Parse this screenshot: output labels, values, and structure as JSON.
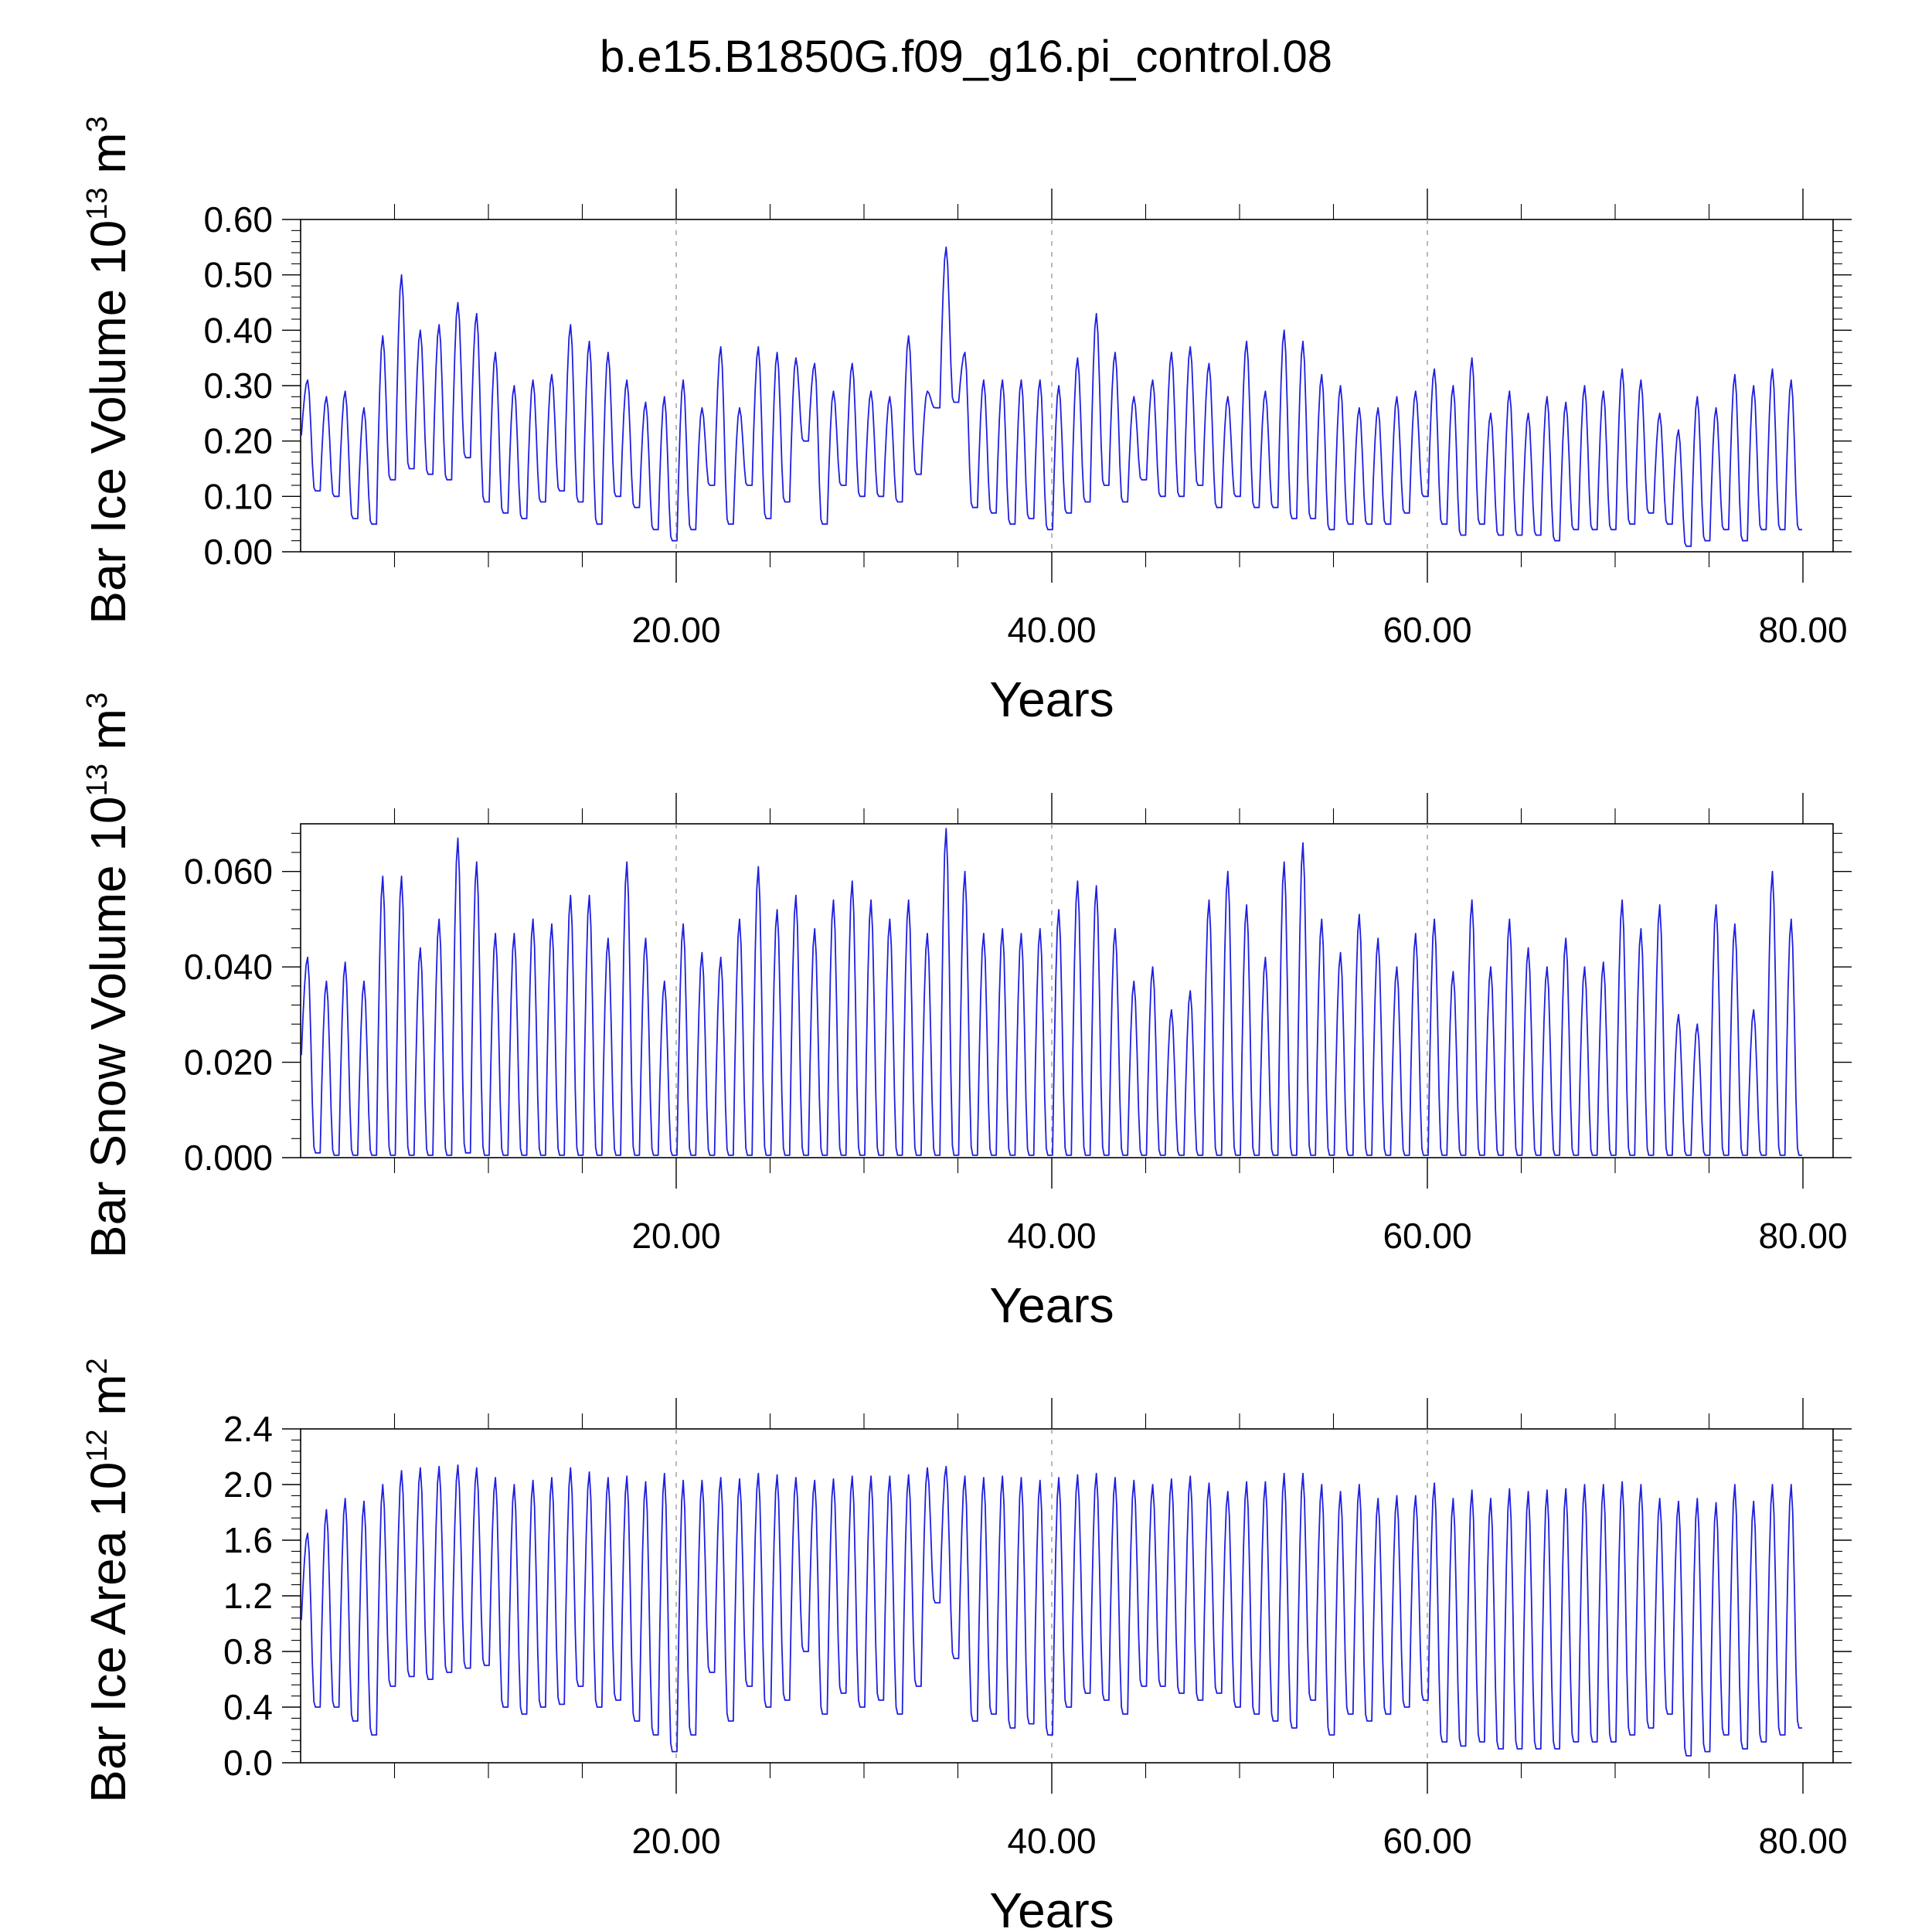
{
  "figure": {
    "title": "b.e15.B1850G.f09_g16.pi_control.08",
    "series_color": "#1f1fe0"
  },
  "chart_data": [
    {
      "type": "line",
      "id": "ice-volume",
      "ylabel": "Bar Ice Volume 10",
      "ylabel_exp": "13",
      "ylabel_unit": " m",
      "ylabel_unit_exp": "3",
      "xlabel": "Years",
      "xlim": [
        0,
        80
      ],
      "ylim": [
        0.0,
        0.6
      ],
      "xticks": [
        20,
        40,
        60,
        80
      ],
      "xtick_labels": [
        "20.00",
        "40.00",
        "60.00",
        "80.00"
      ],
      "yticks": [
        0.0,
        0.1,
        0.2,
        0.3,
        0.4,
        0.5,
        0.6
      ],
      "ytick_labels": [
        "0.00",
        "0.10",
        "0.20",
        "0.30",
        "0.40",
        "0.50",
        "0.60"
      ],
      "grid": "vertical dashed at major x ticks",
      "series": [
        {
          "max": [
            0.31,
            0.28,
            0.29,
            0.26,
            0.39,
            0.5,
            0.4,
            0.41,
            0.45,
            0.43,
            0.36,
            0.3,
            0.31,
            0.32,
            0.41,
            0.38,
            0.36,
            0.31,
            0.27,
            0.28,
            0.31,
            0.26,
            0.37,
            0.26,
            0.37,
            0.36,
            0.35,
            0.34,
            0.29,
            0.34,
            0.29,
            0.28,
            0.39,
            0.29,
            0.55,
            0.36,
            0.31,
            0.31,
            0.31,
            0.31,
            0.3,
            0.35,
            0.43,
            0.36,
            0.28,
            0.31,
            0.36,
            0.37,
            0.34,
            0.28,
            0.38,
            0.29,
            0.4,
            0.38,
            0.32,
            0.3,
            0.26,
            0.26,
            0.28,
            0.29,
            0.33,
            0.3,
            0.35,
            0.25,
            0.29,
            0.25,
            0.28,
            0.27,
            0.3,
            0.29,
            0.33,
            0.31,
            0.25,
            0.22,
            0.28,
            0.26,
            0.32,
            0.3,
            0.33,
            0.31
          ],
          "min": [
            0.11,
            0.1,
            0.06,
            0.05,
            0.13,
            0.15,
            0.14,
            0.13,
            0.17,
            0.09,
            0.07,
            0.06,
            0.09,
            0.11,
            0.09,
            0.05,
            0.1,
            0.08,
            0.04,
            0.02,
            0.04,
            0.12,
            0.05,
            0.12,
            0.06,
            0.09,
            0.2,
            0.05,
            0.12,
            0.1,
            0.1,
            0.09,
            0.14,
            0.26,
            0.27,
            0.08,
            0.07,
            0.05,
            0.06,
            0.04,
            0.07,
            0.09,
            0.12,
            0.09,
            0.13,
            0.1,
            0.1,
            0.12,
            0.08,
            0.1,
            0.08,
            0.08,
            0.06,
            0.06,
            0.04,
            0.05,
            0.05,
            0.05,
            0.07,
            0.1,
            0.05,
            0.03,
            0.05,
            0.03,
            0.03,
            0.03,
            0.02,
            0.04,
            0.04,
            0.04,
            0.05,
            0.07,
            0.05,
            0.01,
            0.02,
            0.04,
            0.02,
            0.04,
            0.04,
            0.04
          ]
        }
      ]
    },
    {
      "type": "line",
      "id": "snow-volume",
      "ylabel": "Bar Snow Volume 10",
      "ylabel_exp": "13",
      "ylabel_unit": " m",
      "ylabel_unit_exp": "3",
      "xlabel": "Years",
      "xlim": [
        0,
        80
      ],
      "ylim": [
        0.0,
        0.07
      ],
      "xticks": [
        20,
        40,
        60,
        80
      ],
      "xtick_labels": [
        "20.00",
        "40.00",
        "60.00",
        "80.00"
      ],
      "yticks": [
        0.0,
        0.02,
        0.04,
        0.06
      ],
      "ytick_labels": [
        "0.000",
        "0.020",
        "0.040",
        "0.060"
      ],
      "grid": "vertical dashed at major x ticks",
      "series": [
        {
          "max": [
            0.042,
            0.037,
            0.041,
            0.037,
            0.059,
            0.059,
            0.044,
            0.05,
            0.067,
            0.062,
            0.047,
            0.047,
            0.05,
            0.049,
            0.055,
            0.055,
            0.046,
            0.062,
            0.046,
            0.037,
            0.049,
            0.043,
            0.042,
            0.05,
            0.061,
            0.052,
            0.055,
            0.048,
            0.054,
            0.058,
            0.054,
            0.05,
            0.054,
            0.047,
            0.069,
            0.06,
            0.047,
            0.048,
            0.047,
            0.048,
            0.052,
            0.058,
            0.057,
            0.048,
            0.037,
            0.04,
            0.031,
            0.035,
            0.054,
            0.06,
            0.053,
            0.042,
            0.062,
            0.066,
            0.05,
            0.043,
            0.051,
            0.046,
            0.04,
            0.047,
            0.05,
            0.039,
            0.054,
            0.04,
            0.05,
            0.044,
            0.04,
            0.046,
            0.04,
            0.041,
            0.054,
            0.048,
            0.053,
            0.03,
            0.028,
            0.053,
            0.049,
            0.031,
            0.06,
            0.05
          ],
          "min": [
            0.001,
            0.0005,
            0.0005,
            0.0005,
            0.0005,
            0.0005,
            0.0005,
            0.0005,
            0.001,
            0.0005,
            0.0005,
            0.0005,
            0.0005,
            0.0005,
            0.0005,
            0.0005,
            0.0005,
            0.0005,
            0.0005,
            0.0005,
            0.0005,
            0.0005,
            0.0005,
            0.0005,
            0.0005,
            0.0005,
            0.0005,
            0.0005,
            0.0005,
            0.0005,
            0.0005,
            0.0005,
            0.0005,
            0.0005,
            0.0005,
            0.0005,
            0.0005,
            0.0005,
            0.0005,
            0.0005,
            0.0005,
            0.0005,
            0.0005,
            0.0005,
            0.0005,
            0.0005,
            0.0005,
            0.0005,
            0.0005,
            0.0005,
            0.0005,
            0.0005,
            0.0005,
            0.0005,
            0.0005,
            0.0005,
            0.0005,
            0.0005,
            0.0005,
            0.0005,
            0.0005,
            0.0005,
            0.0005,
            0.0005,
            0.0005,
            0.0005,
            0.0005,
            0.0005,
            0.0005,
            0.0005,
            0.0005,
            0.0005,
            0.0005,
            0.0005,
            0.0005,
            0.0005,
            0.0005,
            0.0005,
            0.0005,
            0.0005
          ]
        }
      ]
    },
    {
      "type": "line",
      "id": "ice-area",
      "ylabel": "Bar Ice Area 10",
      "ylabel_exp": "12",
      "ylabel_unit": " m",
      "ylabel_unit_exp": "2",
      "xlabel": "Years",
      "xlim": [
        0,
        80
      ],
      "ylim": [
        0.0,
        2.4
      ],
      "xticks": [
        20,
        40,
        60,
        80
      ],
      "xtick_labels": [
        "20.00",
        "40.00",
        "60.00",
        "80.00"
      ],
      "yticks": [
        0.0,
        0.4,
        0.8,
        1.2,
        1.6,
        2.0,
        2.4
      ],
      "ytick_labels": [
        "0.0",
        "0.4",
        "0.8",
        "1.2",
        "1.6",
        "2.0",
        "2.4"
      ],
      "grid": "vertical dashed at major x ticks",
      "series": [
        {
          "max": [
            1.65,
            1.82,
            1.9,
            1.88,
            2.0,
            2.1,
            2.12,
            2.13,
            2.14,
            2.12,
            2.05,
            2.0,
            2.03,
            2.05,
            2.12,
            2.09,
            2.05,
            2.06,
            2.02,
            2.08,
            2.03,
            2.03,
            2.05,
            2.04,
            2.08,
            2.07,
            2.05,
            2.03,
            2.04,
            2.06,
            2.06,
            2.06,
            2.07,
            2.12,
            2.13,
            2.06,
            2.05,
            2.06,
            2.05,
            2.03,
            2.05,
            2.07,
            2.08,
            2.05,
            2.03,
            2.0,
            2.04,
            2.06,
            2.01,
            1.95,
            2.02,
            2.02,
            2.08,
            2.08,
            2.0,
            1.95,
            2.0,
            1.9,
            1.92,
            1.92,
            2.01,
            1.9,
            1.96,
            1.9,
            1.97,
            1.95,
            1.96,
            1.97,
            2.0,
            2.0,
            2.02,
            2.0,
            1.9,
            1.88,
            1.9,
            1.87,
            2.0,
            1.88,
            2.0,
            2.0
          ],
          "min": [
            0.4,
            0.4,
            0.3,
            0.2,
            0.55,
            0.62,
            0.6,
            0.65,
            0.68,
            0.7,
            0.4,
            0.35,
            0.4,
            0.42,
            0.55,
            0.4,
            0.45,
            0.3,
            0.2,
            0.08,
            0.2,
            0.65,
            0.3,
            0.55,
            0.4,
            0.45,
            0.8,
            0.35,
            0.5,
            0.4,
            0.45,
            0.35,
            0.55,
            1.15,
            0.75,
            0.3,
            0.35,
            0.25,
            0.28,
            0.2,
            0.4,
            0.5,
            0.45,
            0.35,
            0.55,
            0.55,
            0.5,
            0.45,
            0.5,
            0.4,
            0.35,
            0.3,
            0.25,
            0.45,
            0.2,
            0.35,
            0.3,
            0.35,
            0.4,
            0.45,
            0.15,
            0.12,
            0.15,
            0.1,
            0.1,
            0.1,
            0.1,
            0.15,
            0.15,
            0.15,
            0.2,
            0.25,
            0.35,
            0.05,
            0.08,
            0.2,
            0.1,
            0.15,
            0.2,
            0.25
          ]
        }
      ]
    }
  ]
}
